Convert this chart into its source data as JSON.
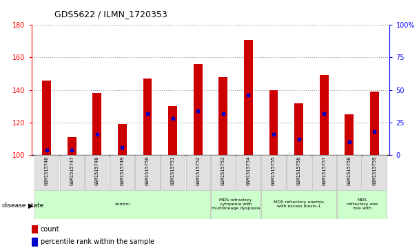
{
  "title": "GDS5622 / ILMN_1720353",
  "samples": [
    "GSM1515746",
    "GSM1515747",
    "GSM1515748",
    "GSM1515749",
    "GSM1515750",
    "GSM1515751",
    "GSM1515752",
    "GSM1515753",
    "GSM1515754",
    "GSM1515755",
    "GSM1515756",
    "GSM1515757",
    "GSM1515758",
    "GSM1515759"
  ],
  "count_values": [
    146,
    111,
    138,
    119,
    147,
    130,
    156,
    148,
    171,
    140,
    132,
    149,
    125,
    139
  ],
  "percentile_values": [
    4,
    4,
    16,
    6,
    32,
    28,
    34,
    32,
    46,
    16,
    12,
    32,
    10,
    18
  ],
  "baseline": 100,
  "ylim_left": [
    100,
    180
  ],
  "ylim_right": [
    0,
    100
  ],
  "yticks_left": [
    100,
    120,
    140,
    160,
    180
  ],
  "yticks_right": [
    0,
    25,
    50,
    75,
    100
  ],
  "bar_color": "#cc0000",
  "percentile_color": "#0000cc",
  "bar_width": 0.35,
  "grid_color": "#999999",
  "bg_color": "#ffffff",
  "disease_groups": [
    {
      "label": "control",
      "start": 0,
      "end": 7,
      "color": "#ccffcc"
    },
    {
      "label": "MDS refractory\ncytopenia with\nmultilineage dysplasia",
      "start": 7,
      "end": 9,
      "color": "#ccffcc"
    },
    {
      "label": "MDS refractory anemia\nwith excess blasts-1",
      "start": 9,
      "end": 12,
      "color": "#ccffcc"
    },
    {
      "label": "MDS\nrefractory ane\nmia with",
      "start": 12,
      "end": 14,
      "color": "#ccffcc"
    }
  ]
}
